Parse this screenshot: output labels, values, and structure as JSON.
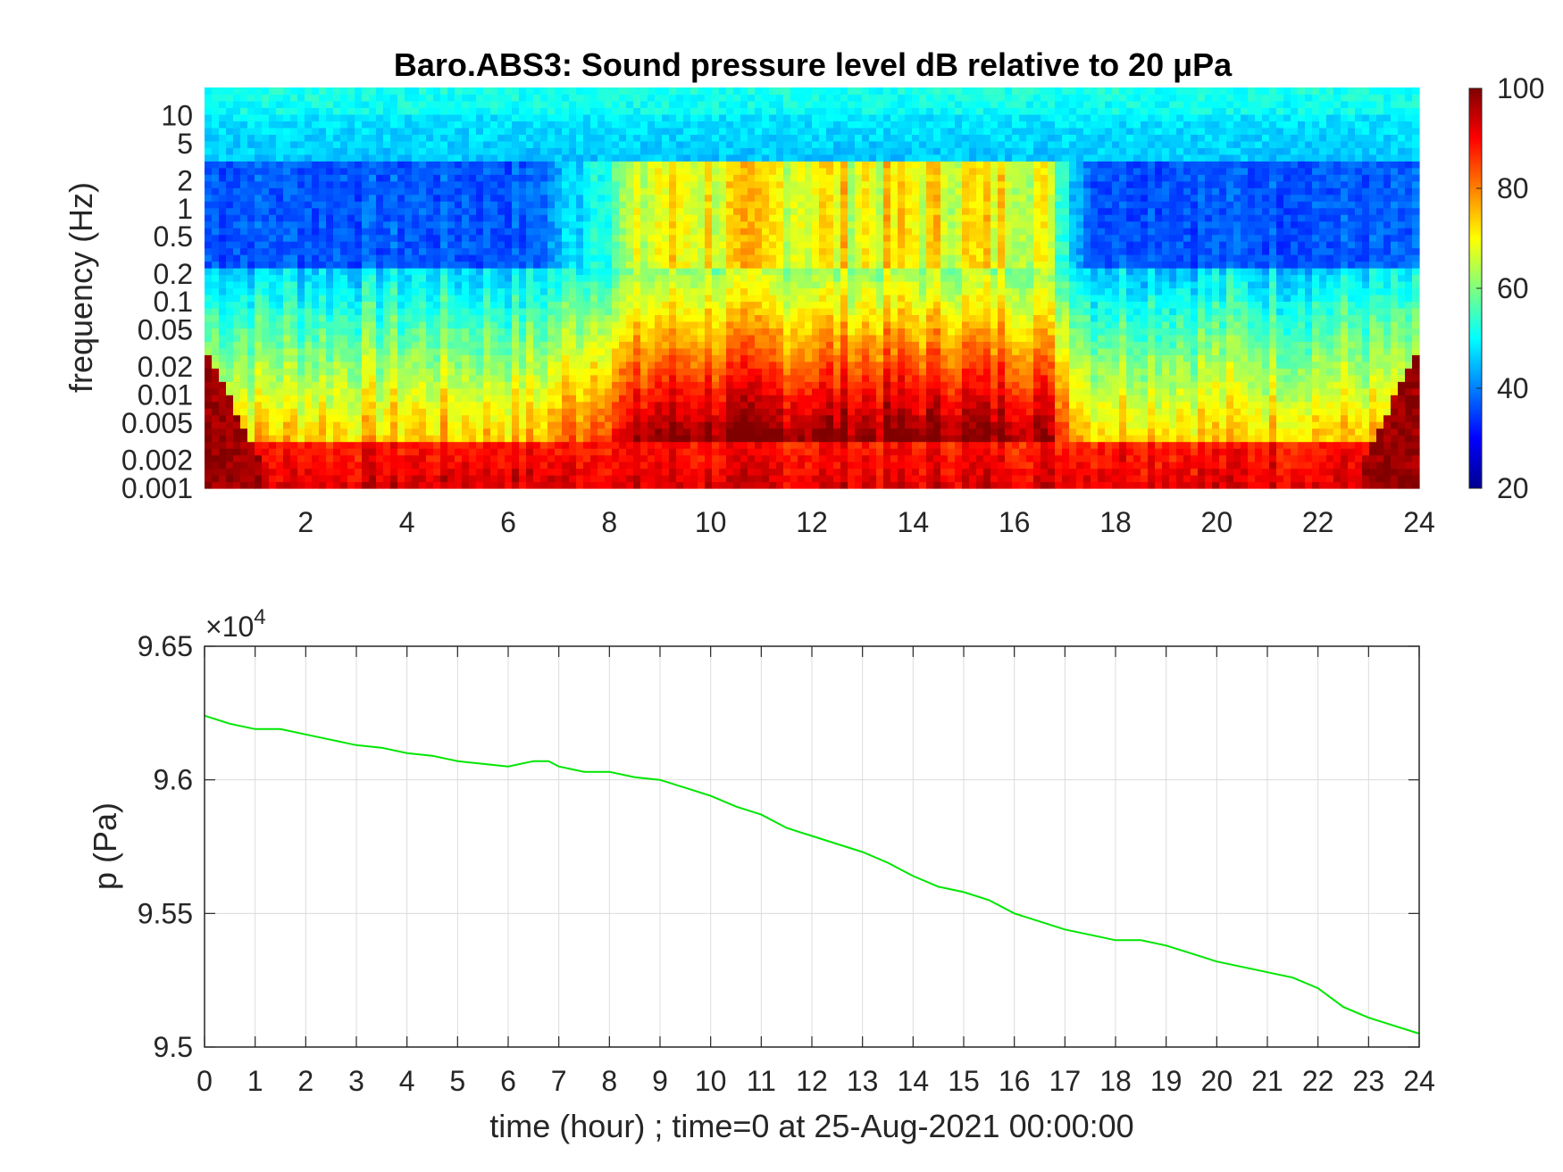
{
  "chart_data": [
    {
      "type": "heatmap",
      "title": "Baro.ABS3: Sound pressure level dB relative to 20 μPa",
      "ylabel": "frequency (Hz)",
      "xlabel": "",
      "x_range": [
        0,
        24
      ],
      "x_ticks": [
        "2",
        "4",
        "6",
        "8",
        "10",
        "12",
        "14",
        "16",
        "18",
        "20",
        "22",
        "24"
      ],
      "y_scale": "log",
      "y_range": [
        0.001,
        20
      ],
      "y_ticks": [
        "0.001",
        "0.002",
        "0.005",
        "0.01",
        "0.02",
        "0.05",
        "0.1",
        "0.2",
        "0.5",
        "1",
        "2",
        "5",
        "10"
      ],
      "colormap": "jet",
      "colorbar": {
        "range": [
          20,
          100
        ],
        "ticks": [
          "20",
          "40",
          "60",
          "80",
          "100"
        ]
      },
      "description_of_levels": {
        "high_frequency_band_dB": 50,
        "quiet_mid_band_dB": 35,
        "active_period_hours": [
          8.5,
          17
        ],
        "active_mid_band_dB": 65,
        "low_frequency_floor_dB": 90
      }
    },
    {
      "type": "line",
      "xlabel": "time (hour) ; time=0 at 25-Aug-2021 00:00:00",
      "ylabel": "p (Pa)",
      "exponent_label": "×10",
      "exponent_power": "4",
      "xlim": [
        0,
        24
      ],
      "ylim": [
        9.5,
        9.65
      ],
      "x_ticks": [
        "0",
        "1",
        "2",
        "3",
        "4",
        "5",
        "6",
        "7",
        "8",
        "9",
        "10",
        "11",
        "12",
        "13",
        "14",
        "15",
        "16",
        "17",
        "18",
        "19",
        "20",
        "21",
        "22",
        "23",
        "24"
      ],
      "y_ticks": [
        "9.5",
        "9.55",
        "9.6",
        "9.65"
      ],
      "grid": true,
      "series": [
        {
          "color": "#00e600",
          "x": [
            0,
            0.5,
            1,
            1.5,
            2,
            2.5,
            3,
            3.5,
            4,
            4.5,
            5,
            5.5,
            6,
            6.5,
            6.8,
            7,
            7.5,
            8,
            8.5,
            9,
            9.5,
            10,
            10.5,
            11,
            11.5,
            12,
            12.5,
            13,
            13.5,
            14,
            14.5,
            15,
            15.5,
            16,
            16.5,
            17,
            17.5,
            18,
            18.5,
            19,
            19.5,
            20,
            20.5,
            21,
            21.5,
            22,
            22.5,
            23,
            23.5,
            24
          ],
          "y": [
            9.624,
            9.621,
            9.619,
            9.619,
            9.617,
            9.615,
            9.613,
            9.612,
            9.61,
            9.609,
            9.607,
            9.606,
            9.605,
            9.607,
            9.607,
            9.605,
            9.603,
            9.603,
            9.601,
            9.6,
            9.597,
            9.594,
            9.59,
            9.587,
            9.582,
            9.579,
            9.576,
            9.573,
            9.569,
            9.564,
            9.56,
            9.558,
            9.555,
            9.55,
            9.547,
            9.544,
            9.542,
            9.54,
            9.54,
            9.538,
            9.535,
            9.532,
            9.53,
            9.528,
            9.526,
            9.522,
            9.515,
            9.511,
            9.508,
            9.505
          ]
        }
      ]
    }
  ]
}
